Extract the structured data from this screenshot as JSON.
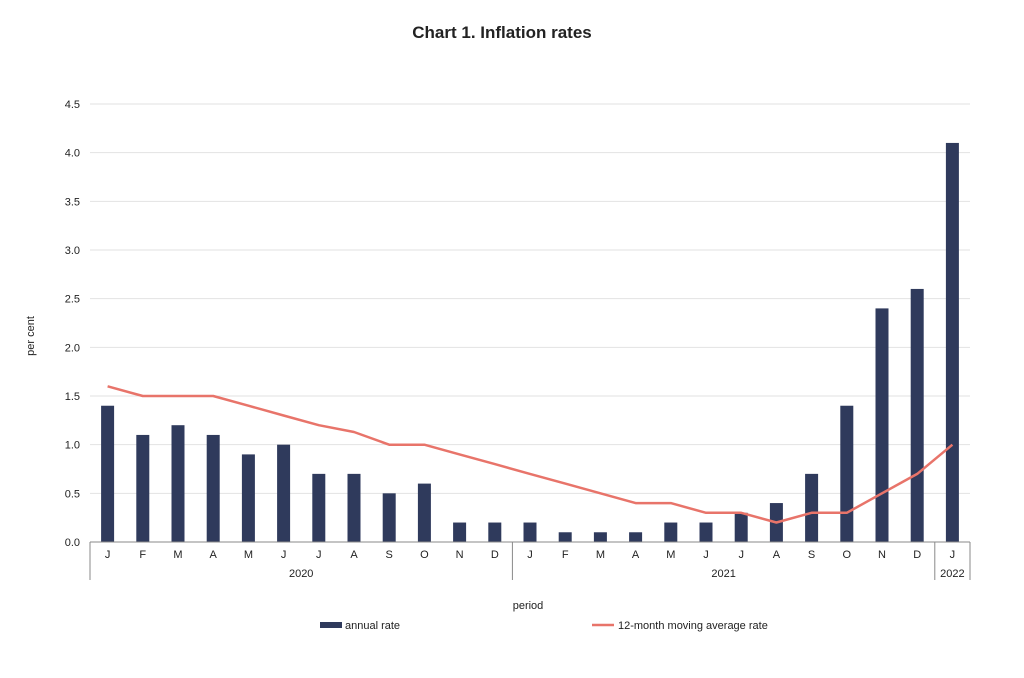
{
  "chart_data": {
    "type": "bar",
    "title": "Chart 1. Inflation rates",
    "xlabel": "period",
    "ylabel": "per cent",
    "ylim": [
      0,
      4.5
    ],
    "yticks": [
      "0.0",
      "0.5",
      "1.0",
      "1.5",
      "2.0",
      "2.5",
      "3.0",
      "3.5",
      "4.0",
      "4.5"
    ],
    "grid": true,
    "legend_position": "bottom",
    "categories": [
      "J",
      "F",
      "M",
      "A",
      "M",
      "J",
      "J",
      "A",
      "S",
      "O",
      "N",
      "D",
      "J",
      "F",
      "M",
      "A",
      "M",
      "J",
      "J",
      "A",
      "S",
      "O",
      "N",
      "D",
      "J"
    ],
    "years": [
      {
        "label": "2020",
        "start": 0,
        "count": 12
      },
      {
        "label": "2021",
        "start": 12,
        "count": 12
      },
      {
        "label": "2022",
        "start": 24,
        "count": 1
      }
    ],
    "series": [
      {
        "name": "annual rate",
        "type": "bar",
        "color": "#2f3a5c",
        "values": [
          1.4,
          1.1,
          1.2,
          1.1,
          0.9,
          1.0,
          0.7,
          0.7,
          0.5,
          0.6,
          0.2,
          0.2,
          0.2,
          0.1,
          0.1,
          0.1,
          0.2,
          0.2,
          0.3,
          0.4,
          0.7,
          1.4,
          2.4,
          2.6,
          4.1
        ]
      },
      {
        "name": "12-month moving average rate",
        "type": "line",
        "color": "#e8746a",
        "values": [
          1.6,
          1.5,
          1.5,
          1.5,
          1.4,
          1.3,
          1.2,
          1.13,
          1.0,
          1.0,
          0.9,
          0.8,
          0.7,
          0.6,
          0.5,
          0.4,
          0.4,
          0.3,
          0.3,
          0.2,
          0.3,
          0.3,
          0.5,
          0.7,
          1.0
        ]
      }
    ]
  }
}
